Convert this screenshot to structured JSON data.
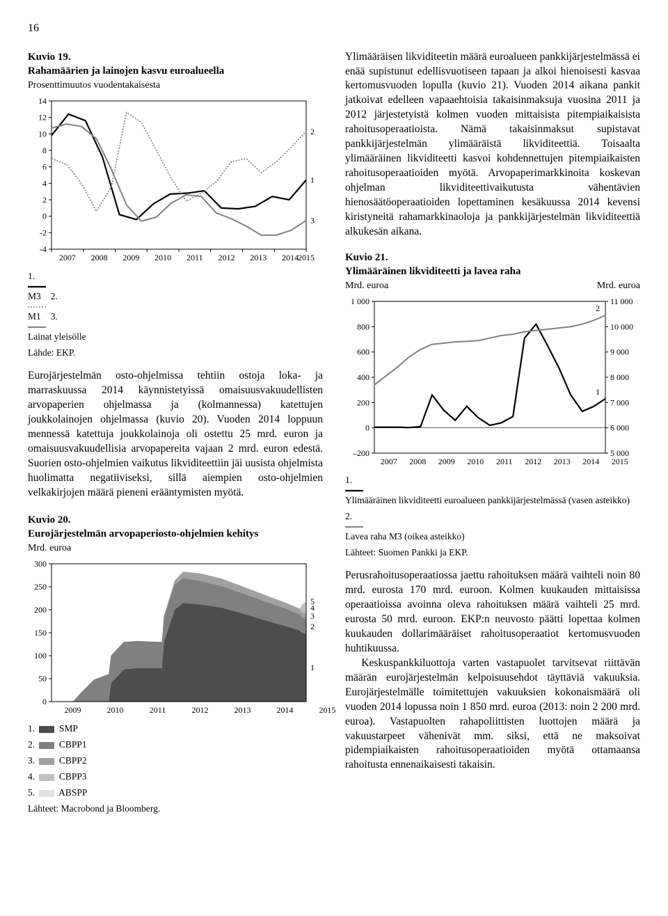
{
  "page_number": "16",
  "left": {
    "fig19": {
      "label": "Kuvio 19.",
      "title": "Rahamäärien ja lainojen kasvu euroalueella",
      "unit": "Prosenttimuutos vuodentakaisesta",
      "x_years": [
        2007,
        2008,
        2009,
        2010,
        2011,
        2012,
        2013,
        2014,
        2015
      ],
      "y_ticks": [
        -4,
        -2,
        0,
        2,
        4,
        6,
        8,
        10,
        12,
        14
      ],
      "ylim": [
        -4,
        14
      ],
      "series": {
        "M3": {
          "label": "M3",
          "color": "#000000",
          "dash": "",
          "width": 2.2,
          "marker": "1",
          "data": [
            9.8,
            12.4,
            11.6,
            7.2,
            0.2,
            -0.4,
            1.5,
            2.7,
            2.8,
            3.1,
            1.0,
            0.9,
            1.2,
            2.4,
            2.0,
            4.4
          ]
        },
        "M1": {
          "label": "M1",
          "color": "#808080",
          "dash": "2,2",
          "width": 1.6,
          "marker": "2",
          "data": [
            7.0,
            6.3,
            4.0,
            0.6,
            3.6,
            12.6,
            11.4,
            8.0,
            4.6,
            1.8,
            2.8,
            4.2,
            6.6,
            7.0,
            5.3,
            6.6,
            8.4,
            10.3
          ]
        },
        "Loans": {
          "label": "Lainat yleisölle",
          "color": "#808080",
          "dash": "",
          "width": 2.0,
          "marker": "3",
          "data": [
            10.7,
            11.2,
            10.9,
            9.4,
            5.7,
            1.4,
            -0.6,
            -0.1,
            1.6,
            2.6,
            2.4,
            0.4,
            -0.3,
            -1.2,
            -2.3,
            -2.3,
            -1.7,
            -0.5
          ]
        }
      },
      "legend_items": [
        {
          "n": "1.",
          "key": "M3"
        },
        {
          "n": "2.",
          "key": "M1"
        },
        {
          "n": "3.",
          "key": "Loans"
        }
      ],
      "source": "Lähde: EKP."
    },
    "para1": "Eurojärjestelmän osto-ohjelmissa tehtiin ostoja loka- ja marraskuussa 2014 käynnistetyissä omaisuusvakuudellisten arvopaperien ohjelmassa ja (kolmannessa) katettujen joukkolainojen ohjelmassa (kuvio 20). Vuoden 2014 loppuun mennessä katettuja joukkolainoja oli ostettu 25 mrd. euron ja omaisuusvakuudellisia arvopapereita vajaan 2 mrd. euron edestä. Suorien osto-ohjelmien vaikutus likviditeettiin jäi uusista ohjelmista huolimatta negatiiviseksi, sillä aiempien osto-ohjelmien velkakirjojen määrä pieneni erääntymisten myötä.",
    "fig20": {
      "label": "Kuvio 20.",
      "title": "Eurojärjestelmän arvopaperiosto-ohjelmien kehitys",
      "unit": "Mrd. euroa",
      "x_years": [
        2009,
        2010,
        2011,
        2012,
        2013,
        2014,
        2015
      ],
      "y_ticks": [
        0,
        50,
        100,
        150,
        200,
        250,
        300
      ],
      "ylim": [
        0,
        300
      ],
      "colors": {
        "SMP": "#4d4d4d",
        "CBPP1": "#808080",
        "CBPP2": "#a0a0a0",
        "CBPP3": "#c0c0c0",
        "ABSPP": "#e0e0e0"
      },
      "markers": [
        "1",
        "2",
        "3",
        "4",
        "5"
      ],
      "stack_points": [
        {
          "x": 2009.5,
          "v": [
            0,
            0,
            0,
            0,
            0
          ]
        },
        {
          "x": 2009.7,
          "v": [
            0,
            20,
            0,
            0,
            0
          ]
        },
        {
          "x": 2010.0,
          "v": [
            0,
            48,
            0,
            0,
            0
          ]
        },
        {
          "x": 2010.35,
          "v": [
            0,
            60,
            0,
            0,
            0
          ]
        },
        {
          "x": 2010.4,
          "v": [
            40,
            60,
            0,
            0,
            0
          ]
        },
        {
          "x": 2010.7,
          "v": [
            70,
            60,
            0,
            0,
            0
          ]
        },
        {
          "x": 2011.0,
          "v": [
            73,
            59,
            0,
            0,
            0
          ]
        },
        {
          "x": 2011.6,
          "v": [
            73,
            57,
            0,
            0,
            0
          ]
        },
        {
          "x": 2011.65,
          "v": [
            130,
            56,
            0,
            0,
            0
          ]
        },
        {
          "x": 2011.9,
          "v": [
            200,
            55,
            8,
            0,
            0
          ]
        },
        {
          "x": 2012.1,
          "v": [
            215,
            54,
            14,
            0,
            0
          ]
        },
        {
          "x": 2012.5,
          "v": [
            212,
            51,
            16,
            0,
            0
          ]
        },
        {
          "x": 2013.0,
          "v": [
            205,
            47,
            16,
            0,
            0
          ]
        },
        {
          "x": 2013.5,
          "v": [
            192,
            44,
            15,
            0,
            0
          ]
        },
        {
          "x": 2014.0,
          "v": [
            178,
            41,
            14,
            0,
            0
          ]
        },
        {
          "x": 2014.5,
          "v": [
            165,
            38,
            13,
            0,
            0
          ]
        },
        {
          "x": 2014.85,
          "v": [
            155,
            35,
            12,
            0,
            0
          ]
        },
        {
          "x": 2014.9,
          "v": [
            150,
            33,
            12,
            15,
            2
          ]
        },
        {
          "x": 2015.0,
          "v": [
            148,
            32,
            12,
            25,
            2
          ]
        }
      ],
      "legend": [
        {
          "n": "1.",
          "label": "SMP",
          "key": "SMP"
        },
        {
          "n": "2.",
          "label": "CBPP1",
          "key": "CBPP1"
        },
        {
          "n": "3.",
          "label": "CBPP2",
          "key": "CBPP2"
        },
        {
          "n": "4.",
          "label": "CBPP3",
          "key": "CBPP3"
        },
        {
          "n": "5.",
          "label": "ABSPP",
          "key": "ABSPP"
        }
      ],
      "source": "Lähteet: Macrobond ja Bloomberg."
    }
  },
  "right": {
    "para1": "Ylimääräisen likviditeetin määrä euroalueen pankkijärjestelmässä ei enää supistunut edellisvuotiseen tapaan ja alkoi hienoisesti kasvaa kertomusvuoden lopulla (kuvio 21). Vuoden 2014 aikana pankit jatkoivat edelleen vapaaehtoisia takaisinmaksuja vuosina 2011 ja 2012 järjestetyistä kolmen vuoden mittaisista pitempiaikaisista rahoitusoperaatioista. Nämä takaisinmaksut supistavat pankkijärjestelmän ylimääräistä likviditeettiä. Toisaalta ylimääräinen likviditeetti kasvoi kohdennettujen pitempiaikaisten rahoitusoperaatioiden myötä. Arvopaperimarkkinoita koskevan ohjelman likviditeettivaikutusta vähentävien hienosäätöoperaatioiden lopettaminen kesäkuussa 2014 kevensi kiristyneitä rahamarkkinaoloja ja pankkijärjestelmän likviditeettiä alkukesän aikana.",
    "fig21": {
      "label": "Kuvio 21.",
      "title": "Ylimääräinen likviditeetti ja lavea raha",
      "unit_left": "Mrd. euroa",
      "unit_right": "Mrd. euroa",
      "x_years": [
        2007,
        2008,
        2009,
        2010,
        2011,
        2012,
        2013,
        2014,
        2015
      ],
      "y_left_ticks": [
        -200,
        0,
        200,
        400,
        600,
        800,
        1000
      ],
      "y_left_lim": [
        -200,
        1000
      ],
      "y_right_ticks": [
        5000,
        6000,
        7000,
        8000,
        9000,
        10000,
        11000
      ],
      "y_right_lim": [
        5000,
        11000
      ],
      "series": {
        "liq": {
          "label": "Ylimääräinen likviditeetti euroalueen pankkijärjestelmässä (vasen asteikko)",
          "color": "#000000",
          "width": 2.2,
          "marker": "1",
          "data": [
            5,
            5,
            5,
            2,
            10,
            260,
            140,
            60,
            170,
            80,
            20,
            40,
            90,
            710,
            820,
            650,
            470,
            260,
            130,
            170,
            230
          ]
        },
        "m3": {
          "label": "Lavea raha M3 (oikea asteikko)",
          "color": "#808080",
          "width": 2.0,
          "marker": "2",
          "data": [
            7700,
            8050,
            8400,
            8800,
            9100,
            9300,
            9350,
            9400,
            9420,
            9450,
            9550,
            9650,
            9700,
            9800,
            9850,
            9900,
            9950,
            10000,
            10100,
            10250,
            10450
          ]
        }
      },
      "legend": [
        {
          "n": "1.",
          "key": "liq"
        },
        {
          "n": "2.",
          "key": "m3"
        }
      ],
      "source": "Lähteet: Suomen Pankki ja EKP."
    },
    "para2a": "Perusrahoitusoperaatiossa jaettu rahoituksen määrä vaihteli noin 80 mrd. eurosta 170 mrd. euroon. Kolmen kuukauden mittaisissa operaatioissa avoinna oleva rahoituksen määrä vaihteli 25 mrd. eurosta 50 mrd. euroon. EKP:n neuvosto päätti lopettaa kolmen kuukauden dollarimääräiset rahoitusoperaatiot kertomusvuoden huhtikuussa.",
    "para2b": "Keskuspankkiluottoja varten vastapuolet tarvitsevat riittävän määrän eurojärjestelmän kelpoisuusehdot täyttäviä vakuuksia. Eurojärjestelmälle toimitettujen vakuuksien kokonaismäärä oli vuoden 2014 lopussa noin 1 850 mrd. euroa (2013: noin 2 200 mrd. euroa). Vastapuolten rahapoliittisten luottojen määrä ja vakuustarpeet vähenivät mm. siksi, että ne maksoivat pidempiaikaisten rahoitusoperaatioiden myötä ottamaansa rahoitusta ennenaikaisesti takaisin."
  },
  "style": {
    "axis_color": "#000000",
    "grid_color": "#d0d0d0",
    "tick_font": "12px",
    "bg": "#ffffff"
  }
}
